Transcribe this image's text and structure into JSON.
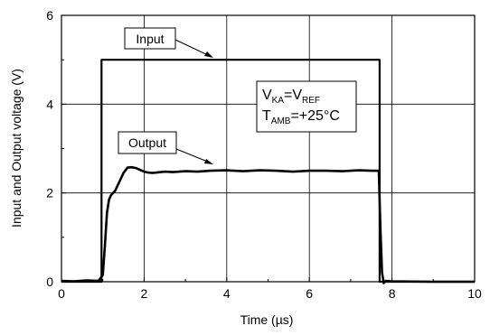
{
  "chart_data": {
    "type": "line",
    "xlabel": "Time (µs)",
    "ylabel": "Input and Output voltage (V)",
    "xlim": [
      0,
      10
    ],
    "ylim": [
      0,
      6
    ],
    "x_ticks": [
      "0",
      "2",
      "4",
      "6",
      "8",
      "10"
    ],
    "y_ticks": [
      "0",
      "2",
      "4",
      "6"
    ],
    "grid": true,
    "series": [
      {
        "name": "Input",
        "x": [
          0,
          0.97,
          0.97,
          7.7,
          7.7,
          10
        ],
        "y": [
          0,
          0,
          5.0,
          5.0,
          0,
          0
        ]
      },
      {
        "name": "Output",
        "x": [
          0,
          0.3,
          0.6,
          0.9,
          1.0,
          1.05,
          1.1,
          1.15,
          1.2,
          1.3,
          1.4,
          1.5,
          1.6,
          1.7,
          1.8,
          1.9,
          2.0,
          2.1,
          2.2,
          2.3,
          2.5,
          2.7,
          3.0,
          3.3,
          3.6,
          4.0,
          4.4,
          4.8,
          5.2,
          5.6,
          6.0,
          6.4,
          6.8,
          7.2,
          7.5,
          7.68,
          7.72,
          7.76,
          7.8,
          7.85,
          8.0,
          9.0,
          10.0
        ],
        "y": [
          0.02,
          0.01,
          0.03,
          0.02,
          0.15,
          0.8,
          1.55,
          1.85,
          1.95,
          2.05,
          2.25,
          2.45,
          2.57,
          2.58,
          2.56,
          2.52,
          2.48,
          2.46,
          2.45,
          2.46,
          2.48,
          2.47,
          2.49,
          2.48,
          2.5,
          2.51,
          2.49,
          2.51,
          2.5,
          2.48,
          2.5,
          2.5,
          2.49,
          2.51,
          2.5,
          2.5,
          1.2,
          0.2,
          -0.03,
          0.02,
          0.01,
          0.0,
          0.0
        ]
      }
    ],
    "annotations": {
      "input_label": "Input",
      "output_label": "Output",
      "conditions": {
        "line1_v": "V",
        "line1_sub1": "KA",
        "line1_eq": "=V",
        "line1_sub2": "REF",
        "line2_t": "T",
        "line2_sub": "AMB",
        "line2_val": "=+25°C"
      }
    }
  }
}
